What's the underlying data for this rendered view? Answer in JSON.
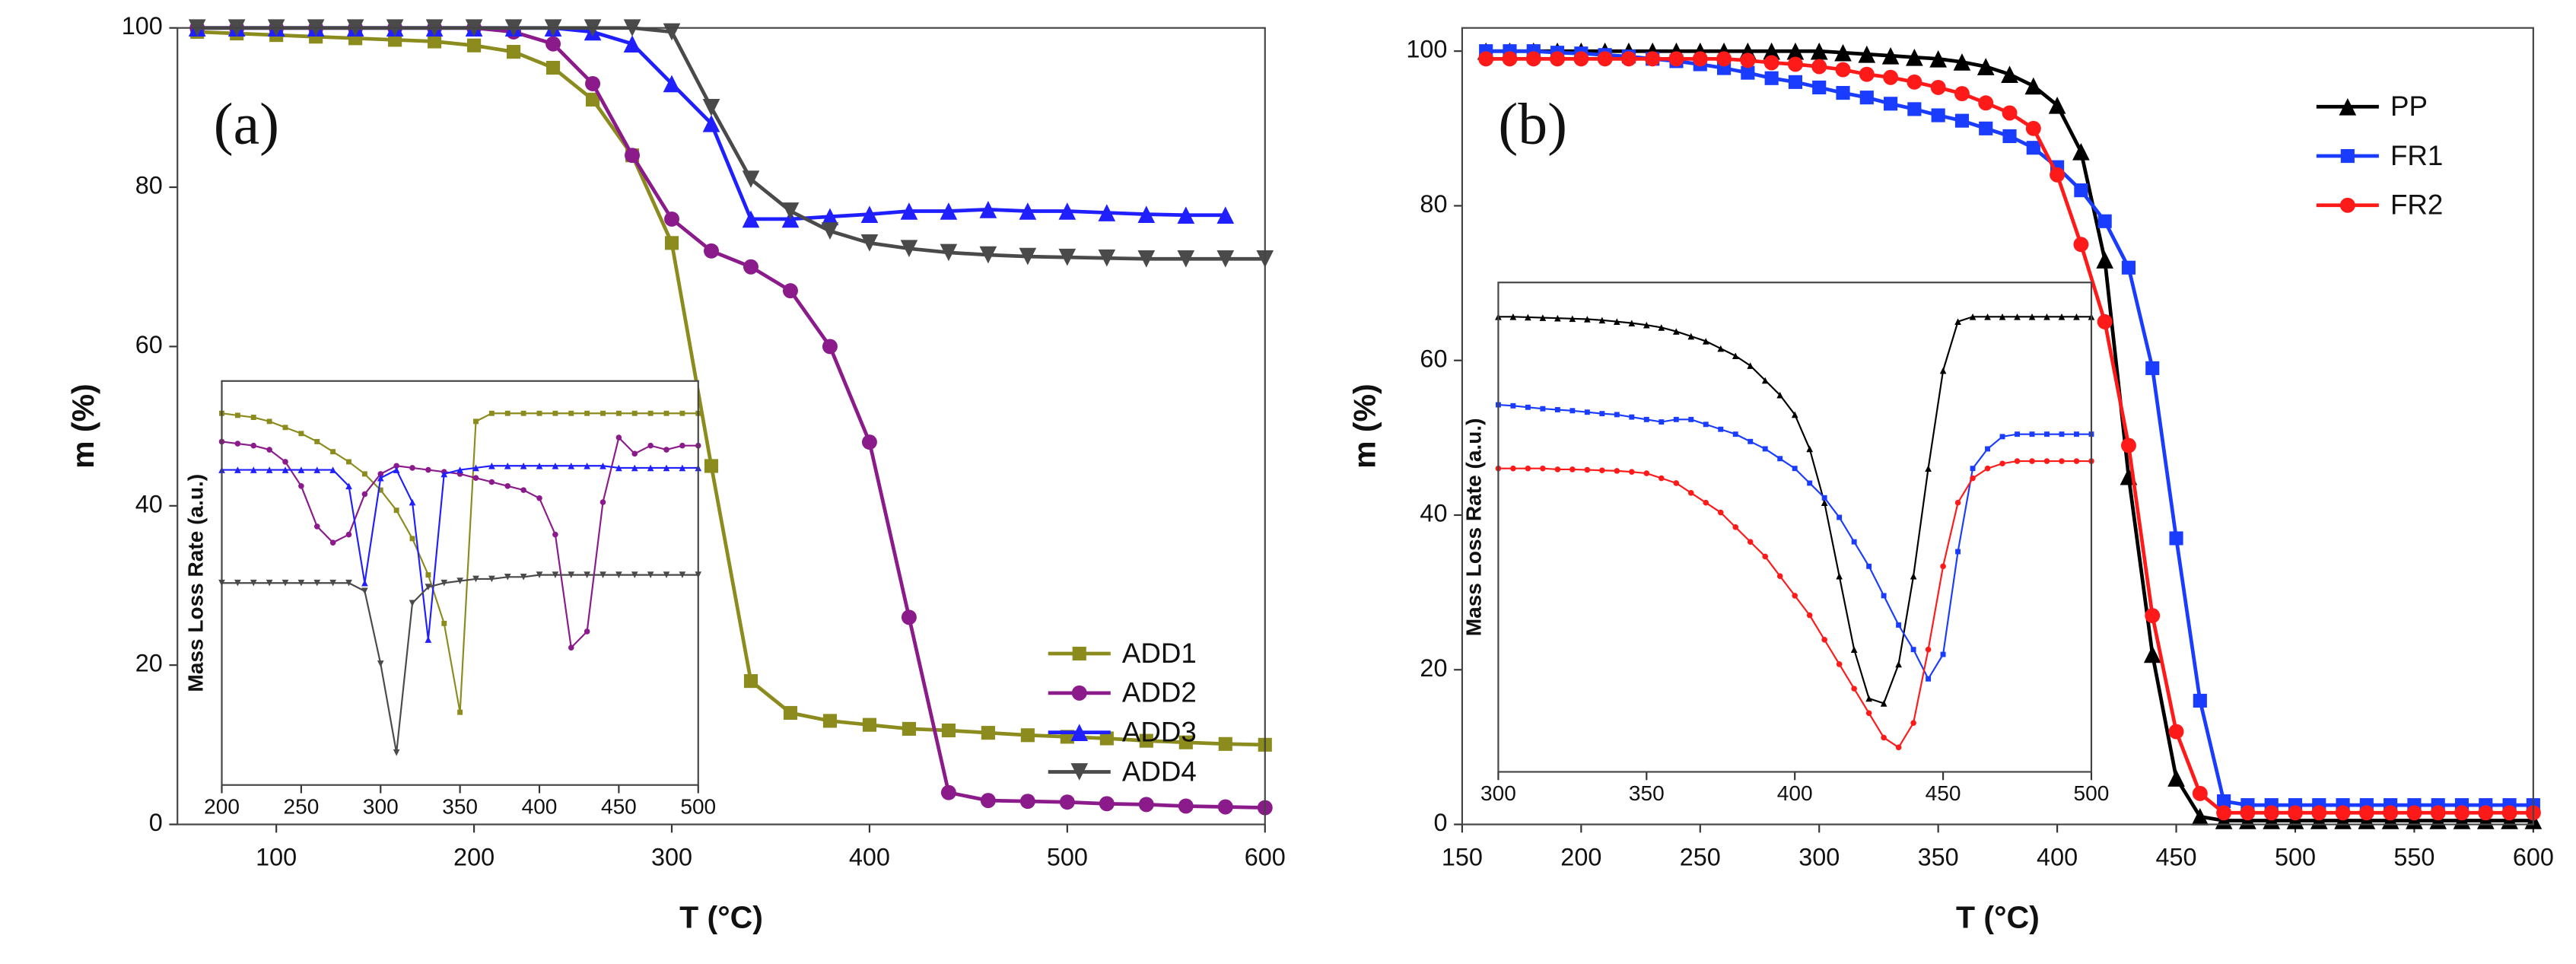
{
  "chart_data": [
    {
      "type": "line",
      "annotation": "(a)",
      "x_label": "T (°C)",
      "y_label": "m (%)",
      "legend": "lower right",
      "xlim": [
        50,
        600
      ],
      "ylim": [
        0,
        100
      ],
      "xticks": [
        100,
        200,
        300,
        400,
        500,
        600
      ],
      "yticks": [
        0,
        20,
        40,
        60,
        80,
        100
      ],
      "x": [
        60,
        80,
        100,
        120,
        140,
        160,
        180,
        200,
        220,
        240,
        260,
        280,
        300,
        320,
        340,
        360,
        380,
        400,
        420,
        440,
        460,
        480,
        500,
        520,
        540,
        560,
        580,
        600
      ],
      "series": [
        {
          "name": "ADD1",
          "color": "#8b8b1e",
          "marker": "square",
          "values": [
            99.5,
            99.3,
            99.1,
            98.9,
            98.7,
            98.5,
            98.3,
            97.8,
            97,
            95,
            91,
            84,
            73,
            45,
            18,
            14,
            13,
            12.5,
            12,
            11.8,
            11.5,
            11.2,
            11,
            10.8,
            10.5,
            10.3,
            10.1,
            10
          ]
        },
        {
          "name": "ADD2",
          "color": "#8b1a8b",
          "marker": "circle",
          "values": [
            100,
            100,
            100,
            100,
            100,
            100,
            100,
            100,
            99.5,
            98,
            93,
            84,
            76,
            72,
            70,
            67,
            60,
            48,
            26,
            4,
            3,
            2.9,
            2.8,
            2.6,
            2.5,
            2.3,
            2.2,
            2.1
          ]
        },
        {
          "name": "ADD3",
          "color": "#1f1fff",
          "marker": "triangle-up",
          "values": [
            100,
            100,
            100,
            100,
            100,
            100,
            100,
            100,
            100,
            100,
            99.5,
            98,
            93,
            88,
            76,
            76,
            76.3,
            76.6,
            77,
            77,
            77.2,
            77,
            77,
            76.8,
            76.6,
            76.5,
            76.5,
            null
          ]
        },
        {
          "name": "ADD4",
          "color": "#4a4a4a",
          "marker": "triangle-down",
          "values": [
            100,
            100,
            100,
            100,
            100,
            100,
            100,
            100,
            100,
            100,
            100,
            100,
            99.5,
            90,
            81,
            77,
            74.5,
            73,
            72.3,
            71.8,
            71.5,
            71.3,
            71.2,
            71.1,
            71,
            71,
            71,
            71
          ]
        }
      ]
    },
    {
      "type": "line",
      "y_label": "Mass Loss Rate (a.u.)",
      "xlim": [
        200,
        500
      ],
      "ylim": [
        0,
        100
      ],
      "xticks": [
        200,
        250,
        300,
        350,
        400,
        450,
        500
      ],
      "x": [
        200,
        210,
        220,
        230,
        240,
        250,
        260,
        270,
        280,
        290,
        300,
        310,
        320,
        330,
        340,
        350,
        360,
        370,
        380,
        390,
        400,
        410,
        420,
        430,
        440,
        450,
        460,
        470,
        480,
        490,
        500
      ],
      "series": [
        {
          "color": "#8b8b1e",
          "marker": "square",
          "values": [
            92,
            91.5,
            91,
            90,
            88.5,
            87,
            85,
            82.5,
            80,
            77,
            73,
            68,
            61,
            52,
            40,
            18,
            90,
            92,
            92,
            92,
            92,
            92,
            92,
            92,
            92,
            92,
            92,
            92,
            92,
            92,
            92
          ]
        },
        {
          "color": "#8b1a8b",
          "marker": "circle",
          "values": [
            85,
            84.5,
            84,
            83,
            80,
            74,
            64,
            60,
            62,
            72,
            77,
            79,
            78.5,
            78,
            77.5,
            77,
            76,
            75,
            74,
            73,
            71,
            62,
            34,
            38,
            70,
            86,
            82,
            84,
            83,
            84,
            84
          ]
        },
        {
          "color": "#1f1fff",
          "marker": "triangle-up",
          "values": [
            78,
            78,
            78,
            78,
            78,
            78,
            78,
            78,
            74,
            50,
            76,
            78,
            70,
            36,
            77,
            78,
            78.5,
            79,
            79,
            79,
            79,
            79,
            79,
            79,
            79,
            78.5,
            78.5,
            78.5,
            78.5,
            78.5,
            78.5
          ]
        },
        {
          "color": "#4a4a4a",
          "marker": "triangle-down",
          "values": [
            50,
            50,
            50,
            50,
            50,
            50,
            50,
            50,
            50,
            48,
            30,
            8,
            45,
            49,
            50,
            50.5,
            51,
            51,
            51.5,
            51.5,
            52,
            52,
            52,
            52,
            52,
            52,
            52,
            52,
            52,
            52,
            52
          ]
        }
      ]
    },
    {
      "type": "line",
      "annotation": "(b)",
      "x_label": "T (°C)",
      "y_label": "m (%)",
      "legend": "upper right",
      "xlim": [
        150,
        600
      ],
      "ylim": [
        0,
        103
      ],
      "xticks": [
        150,
        200,
        250,
        300,
        350,
        400,
        450,
        500,
        550,
        600
      ],
      "yticks": [
        0,
        20,
        40,
        60,
        80,
        100
      ],
      "x": [
        160,
        170,
        180,
        190,
        200,
        210,
        220,
        230,
        240,
        250,
        260,
        270,
        280,
        290,
        300,
        310,
        320,
        330,
        340,
        350,
        360,
        370,
        380,
        390,
        400,
        410,
        420,
        430,
        440,
        450,
        460,
        470,
        480,
        490,
        500,
        510,
        520,
        530,
        540,
        550,
        560,
        570,
        580,
        590,
        600
      ],
      "series": [
        {
          "name": "PP",
          "color": "#000000",
          "marker": "triangle-up",
          "values": [
            100,
            100,
            100,
            100,
            100,
            100,
            100,
            100,
            100,
            100,
            100,
            100,
            100,
            100,
            100,
            99.8,
            99.6,
            99.4,
            99.2,
            99,
            98.6,
            98,
            97,
            95.5,
            93,
            87,
            73,
            45,
            22,
            6,
            1,
            0.5,
            0.5,
            0.5,
            0.5,
            0.5,
            0.5,
            0.5,
            0.5,
            0.5,
            0.5,
            0.5,
            0.5,
            0.5,
            0.5
          ]
        },
        {
          "name": "FR1",
          "color": "#1a3cff",
          "marker": "square",
          "values": [
            100,
            100,
            100,
            99.8,
            99.7,
            99.5,
            99.3,
            99,
            98.7,
            98.3,
            97.8,
            97.2,
            96.5,
            96,
            95.3,
            94.6,
            94,
            93.2,
            92.5,
            91.7,
            91,
            90,
            89,
            87.5,
            85,
            82,
            78,
            72,
            59,
            37,
            16,
            3,
            2.5,
            2.5,
            2.5,
            2.5,
            2.5,
            2.5,
            2.5,
            2.5,
            2.5,
            2.5,
            2.5,
            2.5,
            2.5
          ]
        },
        {
          "name": "FR2",
          "color": "#ff1a1a",
          "marker": "circle",
          "values": [
            99,
            99,
            99,
            99,
            99,
            99,
            99,
            99,
            99,
            99,
            99,
            98.8,
            98.5,
            98.3,
            98,
            97.6,
            97,
            96.6,
            96,
            95.3,
            94.5,
            93.3,
            92,
            90,
            84,
            75,
            65,
            49,
            27,
            12,
            4,
            1.5,
            1.5,
            1.5,
            1.5,
            1.5,
            1.5,
            1.5,
            1.5,
            1.5,
            1.5,
            1.5,
            1.5,
            1.5,
            1.5
          ]
        }
      ]
    },
    {
      "type": "line",
      "y_label": "Mass Loss Rate (a.u.)",
      "xlim": [
        300,
        500
      ],
      "ylim": [
        0,
        100
      ],
      "xticks": [
        300,
        350,
        400,
        450,
        500
      ],
      "x": [
        300,
        305,
        310,
        315,
        320,
        325,
        330,
        335,
        340,
        345,
        350,
        355,
        360,
        365,
        370,
        375,
        380,
        385,
        390,
        395,
        400,
        405,
        410,
        415,
        420,
        425,
        430,
        435,
        440,
        445,
        450,
        455,
        460,
        465,
        470,
        475,
        480,
        485,
        490,
        495,
        500
      ],
      "series": [
        {
          "color": "#000000",
          "marker": "triangle-up",
          "values": [
            93,
            93,
            92.9,
            92.8,
            92.7,
            92.6,
            92.5,
            92.3,
            92,
            91.7,
            91.3,
            90.8,
            90,
            89,
            88,
            86.5,
            85,
            83,
            80,
            77,
            73,
            66,
            55,
            40,
            25,
            15,
            14,
            22,
            40,
            62,
            82,
            92,
            93,
            93,
            93,
            93,
            93,
            93,
            93,
            93,
            93
          ]
        },
        {
          "color": "#1a3cff",
          "marker": "square",
          "values": [
            75,
            74.8,
            74.5,
            74.2,
            74,
            73.8,
            73.5,
            73.2,
            73,
            72.5,
            72,
            71.5,
            72,
            72,
            71,
            70,
            69,
            67.5,
            66,
            64,
            62,
            59,
            56,
            52,
            47,
            42,
            36,
            30,
            25,
            19,
            24,
            45,
            62,
            66,
            68.5,
            69,
            69,
            69,
            69,
            69,
            69
          ]
        },
        {
          "color": "#ff1a1a",
          "marker": "circle",
          "values": [
            62,
            62,
            62,
            62,
            61.8,
            61.8,
            61.7,
            61.6,
            61.5,
            61.3,
            61,
            60,
            59,
            57,
            55,
            53,
            50,
            47,
            44,
            40,
            36,
            32,
            27,
            22,
            17,
            12,
            7,
            5,
            10,
            25,
            42,
            55,
            60,
            62,
            63,
            63.5,
            63.5,
            63.5,
            63.5,
            63.5,
            63.5
          ]
        }
      ]
    }
  ]
}
